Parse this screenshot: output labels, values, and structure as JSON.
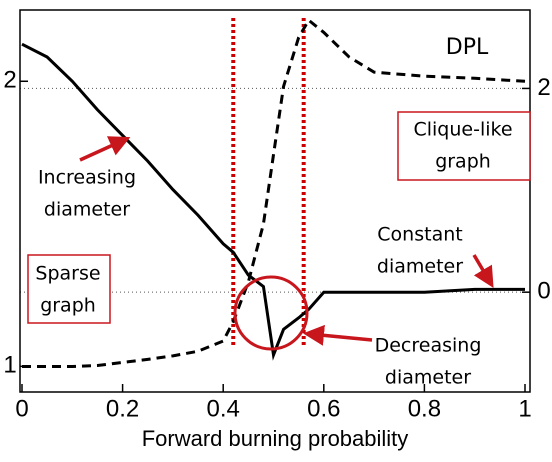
{
  "chart_data": {
    "type": "line",
    "xlabel": "Forward burning probability",
    "x": [
      0,
      0.05,
      0.1,
      0.15,
      0.2,
      0.25,
      0.3,
      0.35,
      0.4,
      0.42,
      0.45,
      0.48,
      0.5,
      0.52,
      0.55,
      0.57,
      0.6,
      0.65,
      0.7,
      0.8,
      0.9,
      1.0
    ],
    "series": [
      {
        "color": "#000000",
        "dashed": false,
        "values": [
          2.13,
          2.085,
          2.0,
          1.9,
          1.81,
          1.72,
          1.62,
          1.53,
          1.43,
          1.4,
          1.32,
          1.28,
          1.04,
          1.13,
          1.17,
          1.2,
          1.26,
          1.26,
          1.26,
          1.26,
          1.27,
          1.27
        ]
      },
      {
        "color": "#000000",
        "dashed": true,
        "axis": "y2",
        "values": [
          -0.73,
          -0.73,
          -0.73,
          -0.72,
          -0.69,
          -0.66,
          -0.625,
          -0.58,
          -0.48,
          -0.29,
          0.1,
          0.67,
          1.35,
          2.02,
          2.5,
          2.67,
          2.55,
          2.31,
          2.16,
          2.12,
          2.1,
          2.07
        ]
      }
    ],
    "xlim": [
      0,
      1
    ],
    "xticks": [
      0,
      0.2,
      0.4,
      0.6,
      0.8,
      1
    ],
    "ylim": [
      0.91,
      2.25
    ],
    "yticks": [
      1,
      2
    ],
    "y2lim": [
      -0.98,
      2.77
    ],
    "y2ticks": [
      0,
      2
    ],
    "grid": true,
    "vlines": [
      0.42,
      0.56
    ],
    "vline_color": "#cc0000",
    "annotations": [
      {
        "lines": [
          "DPL"
        ]
      },
      {
        "lines": [
          "Clique-like",
          "graph"
        ]
      },
      {
        "lines": [
          "Increasing",
          "diameter"
        ]
      },
      {
        "lines": [
          "Sparse",
          "graph"
        ]
      },
      {
        "lines": [
          "Constant",
          "diameter"
        ]
      },
      {
        "lines": [
          "Decreasing",
          "diameter"
        ]
      }
    ]
  }
}
